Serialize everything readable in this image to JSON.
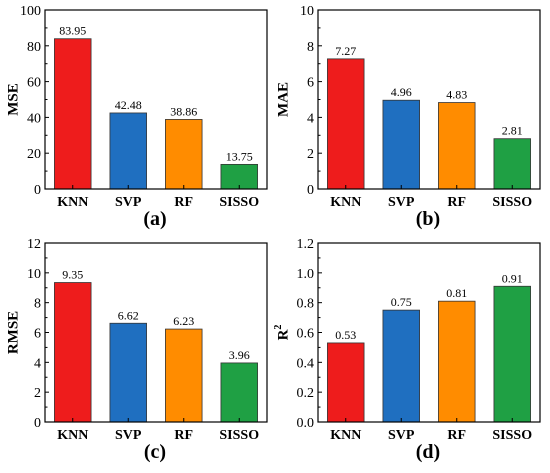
{
  "chart_data": [
    {
      "type": "bar",
      "panel_label": "(a)",
      "ylabel": "MSE",
      "categories": [
        "KNN",
        "SVP",
        "RF",
        "SISSO"
      ],
      "values": [
        83.95,
        42.48,
        38.86,
        13.75
      ],
      "value_labels": [
        "83.95",
        "42.48",
        "38.86",
        "13.75"
      ],
      "ylim": [
        0,
        100
      ],
      "yticks": [
        0,
        20,
        40,
        60,
        80,
        100
      ],
      "ytick_labels": [
        "0",
        "20",
        "40",
        "60",
        "80",
        "100"
      ],
      "colors": [
        "#ee1c1c",
        "#1f6fc0",
        "#ff8c00",
        "#1fa044"
      ],
      "grid": false
    },
    {
      "type": "bar",
      "panel_label": "(b)",
      "ylabel": "MAE",
      "categories": [
        "KNN",
        "SVP",
        "RF",
        "SISSO"
      ],
      "values": [
        7.27,
        4.96,
        4.83,
        2.81
      ],
      "value_labels": [
        "7.27",
        "4.96",
        "4.83",
        "2.81"
      ],
      "ylim": [
        0,
        10
      ],
      "yticks": [
        0,
        2,
        4,
        6,
        8,
        10
      ],
      "ytick_labels": [
        "0",
        "2",
        "4",
        "6",
        "8",
        "10"
      ],
      "colors": [
        "#ee1c1c",
        "#1f6fc0",
        "#ff8c00",
        "#1fa044"
      ],
      "grid": false
    },
    {
      "type": "bar",
      "panel_label": "(c)",
      "ylabel": "RMSE",
      "categories": [
        "KNN",
        "SVP",
        "RF",
        "SISSO"
      ],
      "values": [
        9.35,
        6.62,
        6.23,
        3.96
      ],
      "value_labels": [
        "9.35",
        "6.62",
        "6.23",
        "3.96"
      ],
      "ylim": [
        0,
        12
      ],
      "yticks": [
        0,
        2,
        4,
        6,
        8,
        10,
        12
      ],
      "ytick_labels": [
        "0",
        "2",
        "4",
        "6",
        "8",
        "10",
        "12"
      ],
      "colors": [
        "#ee1c1c",
        "#1f6fc0",
        "#ff8c00",
        "#1fa044"
      ],
      "grid": false
    },
    {
      "type": "bar",
      "panel_label": "(d)",
      "ylabel": "R",
      "ylabel_superscript": "2",
      "categories": [
        "KNN",
        "SVP",
        "RF",
        "SISSO"
      ],
      "values": [
        0.53,
        0.75,
        0.81,
        0.91
      ],
      "value_labels": [
        "0.53",
        "0.75",
        "0.81",
        "0.91"
      ],
      "ylim": [
        0,
        1.2
      ],
      "yticks": [
        0,
        0.2,
        0.4,
        0.6,
        0.8,
        1.0,
        1.2
      ],
      "ytick_labels": [
        "0.0",
        "0.2",
        "0.4",
        "0.6",
        "0.8",
        "1.0",
        "1.2"
      ],
      "colors": [
        "#ee1c1c",
        "#1f6fc0",
        "#ff8c00",
        "#1fa044"
      ],
      "grid": false
    }
  ]
}
